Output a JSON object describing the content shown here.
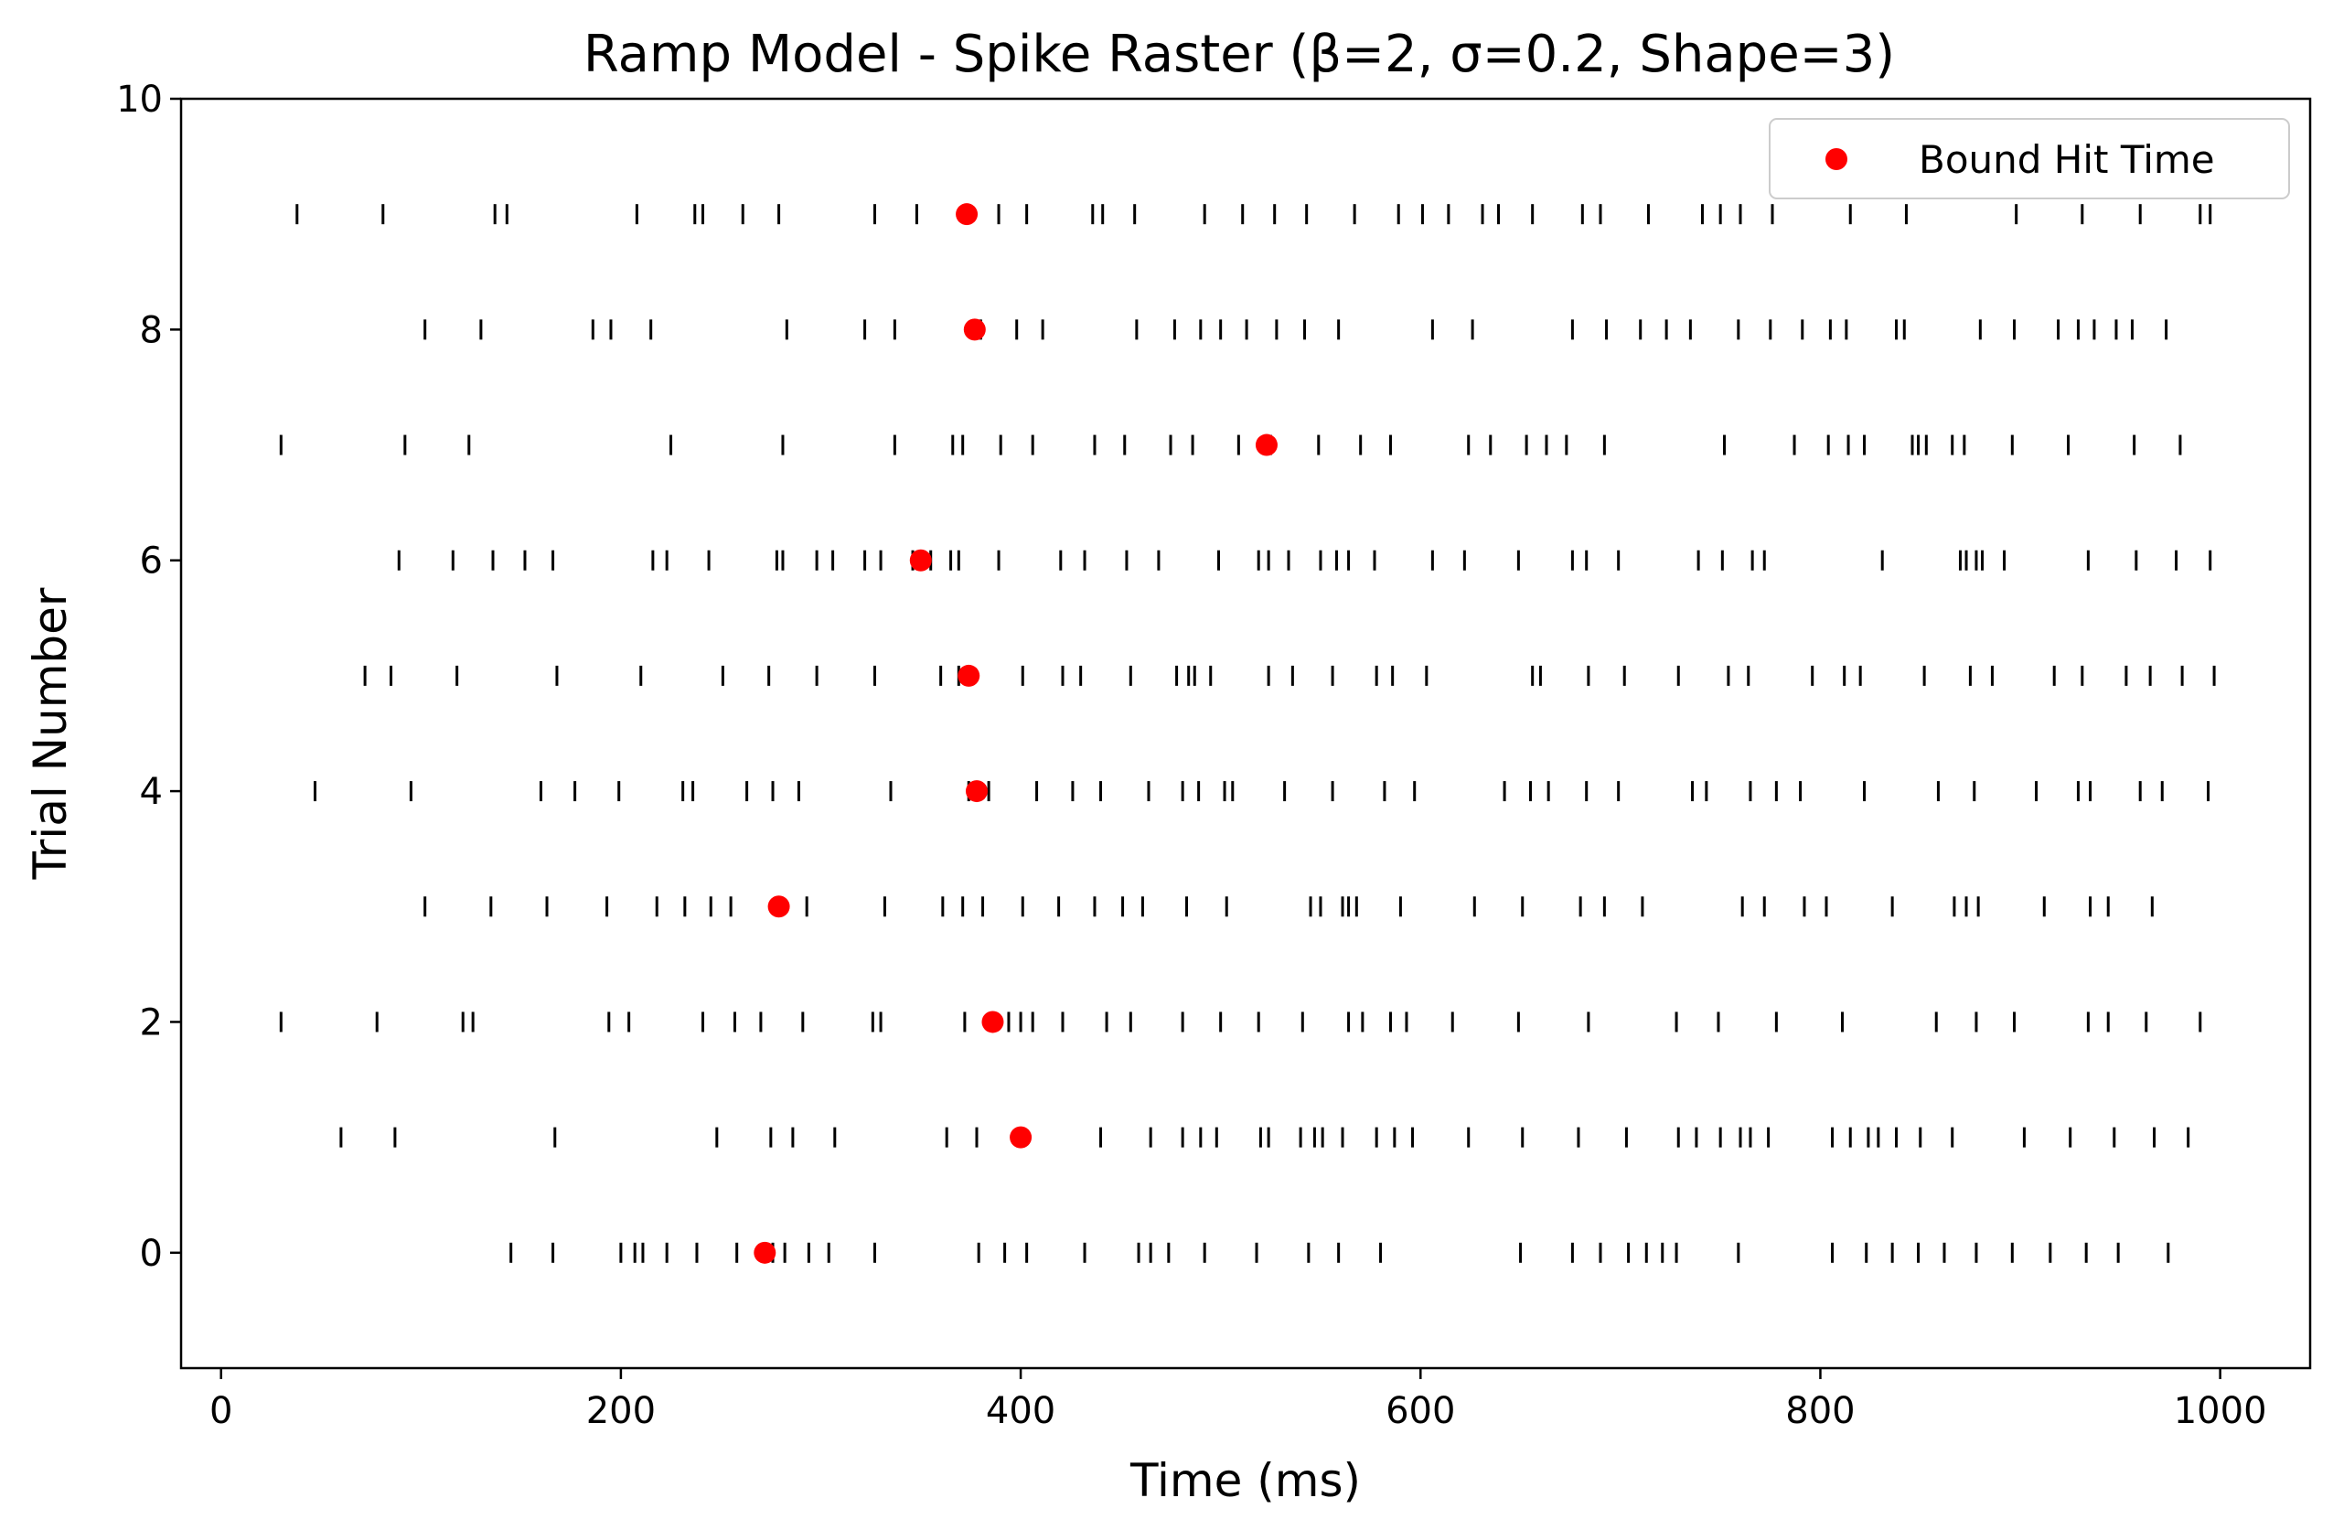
{
  "chart_data": {
    "type": "scatter",
    "title": "Ramp Model - Spike Raster (β=2, σ=0.2, Shape=3)",
    "xlabel": "Time (ms)",
    "ylabel": "Trial Number",
    "xlim": [
      -20,
      1045
    ],
    "ylim": [
      -1,
      10
    ],
    "x_ticks": [
      0,
      200,
      400,
      600,
      800,
      1000
    ],
    "y_ticks": [
      0,
      2,
      4,
      6,
      8,
      10
    ],
    "grid": false,
    "legend": {
      "position": "top-right",
      "entries": [
        "Bound Hit Time"
      ]
    },
    "spike_color": "#000000",
    "bound_color": "#ff0000",
    "spike_trials": [
      {
        "trial": 0,
        "times": [
          145,
          166,
          200,
          207,
          211,
          223,
          238,
          258,
          276,
          282,
          294,
          304,
          327,
          379,
          392,
          403,
          432,
          459,
          465,
          474,
          492,
          518,
          544,
          559,
          580,
          650,
          676,
          690,
          704,
          713,
          721,
          728,
          759,
          806,
          823,
          836,
          849,
          862,
          878,
          896,
          915,
          933,
          949,
          974
        ]
      },
      {
        "trial": 1,
        "times": [
          60,
          87,
          167,
          248,
          275,
          286,
          307,
          363,
          378,
          401,
          440,
          465,
          481,
          490,
          498,
          520,
          524,
          540,
          547,
          551,
          561,
          578,
          587,
          596,
          624,
          651,
          679,
          703,
          729,
          738,
          750,
          760,
          765,
          774,
          806,
          815,
          824,
          829,
          838,
          850,
          866,
          902,
          925,
          947,
          967,
          984
        ]
      },
      {
        "trial": 2,
        "times": [
          30,
          78,
          121,
          126,
          194,
          204,
          241,
          257,
          270,
          291,
          326,
          330,
          372,
          385,
          394,
          400,
          406,
          421,
          443,
          455,
          481,
          500,
          519,
          541,
          564,
          571,
          585,
          593,
          616,
          649,
          684,
          728,
          749,
          778,
          811,
          858,
          878,
          897,
          934,
          944,
          963,
          990
        ]
      },
      {
        "trial": 3,
        "times": [
          102,
          135,
          163,
          193,
          218,
          232,
          245,
          255,
          293,
          332,
          361,
          371,
          381,
          401,
          419,
          437,
          451,
          461,
          483,
          503,
          545,
          550,
          561,
          564,
          568,
          590,
          627,
          651,
          680,
          692,
          711,
          761,
          772,
          792,
          803,
          836,
          867,
          873,
          879,
          912,
          935,
          944,
          966
        ]
      },
      {
        "trial": 4,
        "times": [
          47,
          95,
          160,
          177,
          199,
          231,
          236,
          263,
          276,
          289,
          335,
          374,
          384,
          408,
          426,
          440,
          464,
          481,
          489,
          502,
          506,
          532,
          556,
          582,
          597,
          642,
          655,
          664,
          683,
          699,
          736,
          743,
          765,
          778,
          790,
          822,
          859,
          877,
          908,
          929,
          935,
          960,
          971,
          994
        ]
      },
      {
        "trial": 5,
        "times": [
          72,
          85,
          118,
          168,
          210,
          251,
          274,
          298,
          327,
          360,
          369,
          401,
          421,
          430,
          455,
          478,
          484,
          487,
          495,
          524,
          536,
          556,
          578,
          586,
          603,
          656,
          660,
          684,
          702,
          729,
          754,
          764,
          796,
          812,
          820,
          852,
          875,
          886,
          917,
          931,
          953,
          965,
          981,
          997
        ]
      },
      {
        "trial": 6,
        "times": [
          89,
          116,
          136,
          152,
          166,
          216,
          223,
          244,
          278,
          281,
          298,
          306,
          322,
          330,
          346,
          355,
          365,
          369,
          389,
          420,
          432,
          453,
          469,
          499,
          519,
          524,
          534,
          550,
          558,
          564,
          577,
          606,
          622,
          649,
          676,
          683,
          699,
          739,
          751,
          766,
          772,
          831,
          870,
          873,
          878,
          881,
          892,
          934,
          958,
          978,
          995
        ]
      },
      {
        "trial": 7,
        "times": [
          30,
          92,
          124,
          225,
          281,
          337,
          366,
          371,
          390,
          406,
          437,
          452,
          475,
          486,
          509,
          525,
          549,
          570,
          585,
          624,
          635,
          653,
          663,
          673,
          692,
          752,
          787,
          804,
          814,
          822,
          846,
          849,
          853,
          866,
          872,
          896,
          924,
          957,
          980
        ]
      },
      {
        "trial": 8,
        "times": [
          102,
          130,
          186,
          195,
          215,
          283,
          322,
          337,
          376,
          380,
          398,
          411,
          458,
          477,
          490,
          500,
          513,
          528,
          542,
          559,
          606,
          626,
          676,
          693,
          710,
          723,
          735,
          759,
          775,
          791,
          805,
          813,
          838,
          842,
          880,
          897,
          919,
          929,
          937,
          948,
          956,
          973
        ]
      },
      {
        "trial": 9,
        "times": [
          38,
          81,
          137,
          143,
          208,
          237,
          241,
          261,
          279,
          327,
          348,
          389,
          403,
          436,
          441,
          457,
          492,
          511,
          527,
          543,
          567,
          589,
          601,
          614,
          631,
          639,
          656,
          681,
          690,
          714,
          741,
          750,
          760,
          776,
          815,
          843,
          898,
          931,
          960,
          990,
          995
        ]
      }
    ],
    "bound_hits": [
      {
        "trial": 0,
        "time": 272
      },
      {
        "trial": 1,
        "time": 400
      },
      {
        "trial": 2,
        "time": 386
      },
      {
        "trial": 3,
        "time": 279
      },
      {
        "trial": 4,
        "time": 378
      },
      {
        "trial": 5,
        "time": 374
      },
      {
        "trial": 6,
        "time": 350
      },
      {
        "trial": 7,
        "time": 523
      },
      {
        "trial": 8,
        "time": 377
      },
      {
        "trial": 9,
        "time": 373
      }
    ]
  }
}
